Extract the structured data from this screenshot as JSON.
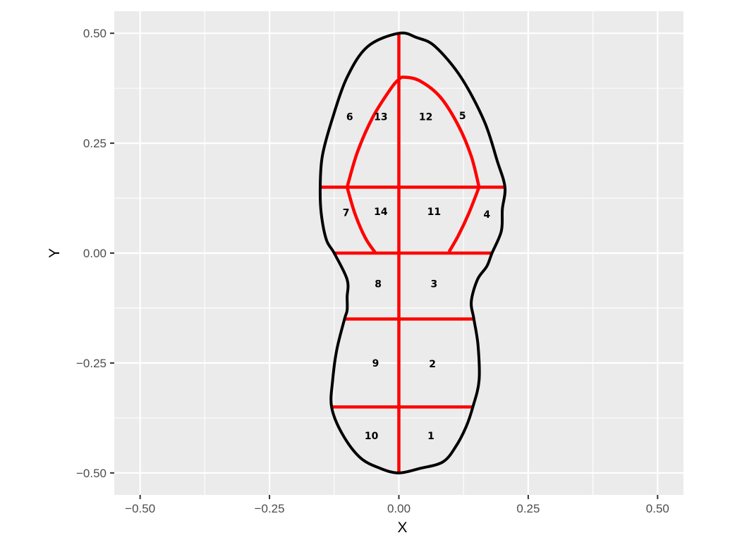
{
  "chart_data": {
    "type": "diagram",
    "xlabel": "X",
    "ylabel": "Y",
    "xlim": [
      -0.55,
      0.55
    ],
    "ylim": [
      -0.55,
      0.55
    ],
    "x_ticks": [
      -0.5,
      -0.25,
      0.0,
      0.25,
      0.5
    ],
    "y_ticks": [
      -0.5,
      -0.25,
      0.0,
      0.25,
      0.5
    ],
    "x_tick_labels": [
      "−0.50",
      "−0.25",
      "0.00",
      "0.25",
      "0.50"
    ],
    "y_tick_labels": [
      "−0.50",
      "−0.25",
      "0.00",
      "0.25",
      "0.50"
    ],
    "grid": true,
    "colors": {
      "panel": "#ebebeb",
      "grid": "#ffffff",
      "outline": "#000000",
      "divider": "#ff0000"
    },
    "outline": [
      [
        0.0,
        0.5
      ],
      [
        -0.06,
        0.47
      ],
      [
        -0.1,
        0.4
      ],
      [
        -0.13,
        0.3
      ],
      [
        -0.148,
        0.22
      ],
      [
        -0.152,
        0.15
      ],
      [
        -0.15,
        0.09
      ],
      [
        -0.14,
        0.03
      ],
      [
        -0.125,
        0.0
      ],
      [
        -0.1,
        -0.06
      ],
      [
        -0.1,
        -0.1
      ],
      [
        -0.1,
        -0.13
      ],
      [
        -0.105,
        -0.15
      ],
      [
        -0.12,
        -0.22
      ],
      [
        -0.128,
        -0.29
      ],
      [
        -0.13,
        -0.35
      ],
      [
        -0.11,
        -0.41
      ],
      [
        -0.075,
        -0.465
      ],
      [
        -0.035,
        -0.49
      ],
      [
        0.0,
        -0.5
      ],
      [
        0.04,
        -0.49
      ],
      [
        0.085,
        -0.475
      ],
      [
        0.11,
        -0.44
      ],
      [
        0.13,
        -0.395
      ],
      [
        0.143,
        -0.35
      ],
      [
        0.155,
        -0.29
      ],
      [
        0.153,
        -0.21
      ],
      [
        0.145,
        -0.15
      ],
      [
        0.14,
        -0.11
      ],
      [
        0.152,
        -0.06
      ],
      [
        0.17,
        -0.03
      ],
      [
        0.18,
        0.0
      ],
      [
        0.198,
        0.05
      ],
      [
        0.2,
        0.1
      ],
      [
        0.205,
        0.15
      ],
      [
        0.19,
        0.21
      ],
      [
        0.165,
        0.3
      ],
      [
        0.12,
        0.4
      ],
      [
        0.07,
        0.47
      ],
      [
        0.035,
        0.49
      ],
      [
        0.0,
        0.5
      ]
    ],
    "toe_arc": [
      [
        -0.1,
        0.15
      ],
      [
        -0.08,
        0.23
      ],
      [
        -0.05,
        0.31
      ],
      [
        -0.015,
        0.375
      ],
      [
        0.0,
        0.395
      ],
      [
        0.01,
        0.4
      ],
      [
        0.04,
        0.392
      ],
      [
        0.08,
        0.355
      ],
      [
        0.115,
        0.29
      ],
      [
        0.14,
        0.22
      ],
      [
        0.155,
        0.15
      ]
    ],
    "inner_left": [
      [
        -0.1,
        0.15
      ],
      [
        -0.085,
        0.09
      ],
      [
        -0.065,
        0.035
      ],
      [
        -0.045,
        0.0
      ]
    ],
    "inner_right": [
      [
        0.155,
        0.15
      ],
      [
        0.135,
        0.09
      ],
      [
        0.115,
        0.04
      ],
      [
        0.097,
        0.003
      ]
    ],
    "center_line": [
      [
        0.0,
        0.5
      ],
      [
        0.0,
        -0.5
      ]
    ],
    "horizontal_lines": [
      [
        [
          -0.152,
          0.15
        ],
        [
          0.205,
          0.15
        ]
      ],
      [
        [
          -0.125,
          0.0
        ],
        [
          0.18,
          0.0
        ]
      ],
      [
        [
          -0.105,
          -0.15
        ],
        [
          0.145,
          -0.15
        ]
      ],
      [
        [
          -0.13,
          -0.35
        ],
        [
          0.143,
          -0.35
        ]
      ]
    ],
    "region_labels": [
      {
        "text": "1",
        "x": 0.062,
        "y": -0.415
      },
      {
        "text": "2",
        "x": 0.065,
        "y": -0.252
      },
      {
        "text": "3",
        "x": 0.068,
        "y": -0.07
      },
      {
        "text": "4",
        "x": 0.17,
        "y": 0.088
      },
      {
        "text": "5",
        "x": 0.123,
        "y": 0.313
      },
      {
        "text": "6",
        "x": -0.095,
        "y": 0.31
      },
      {
        "text": "7",
        "x": -0.102,
        "y": 0.092
      },
      {
        "text": "8",
        "x": -0.04,
        "y": -0.07
      },
      {
        "text": "9",
        "x": -0.045,
        "y": -0.25
      },
      {
        "text": "10",
        "x": -0.053,
        "y": -0.415
      },
      {
        "text": "11",
        "x": 0.068,
        "y": 0.095
      },
      {
        "text": "12",
        "x": 0.052,
        "y": 0.31
      },
      {
        "text": "13",
        "x": -0.035,
        "y": 0.31
      },
      {
        "text": "14",
        "x": -0.035,
        "y": 0.095
      }
    ]
  }
}
